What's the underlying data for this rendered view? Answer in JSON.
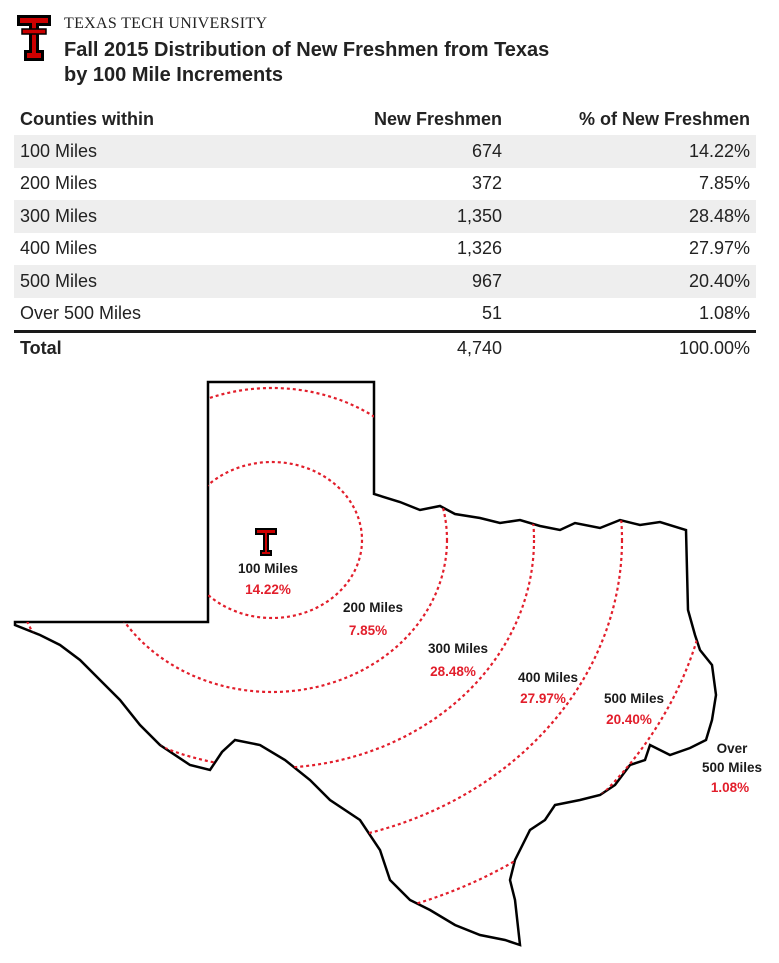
{
  "header": {
    "university": "TEXAS TECH UNIVERSITY",
    "title_line1": "Fall 2015 Distribution of New Freshmen from Texas",
    "title_line2": "by 100 Mile Increments"
  },
  "table": {
    "columns": [
      "Counties within",
      "New Freshmen",
      "% of New Freshmen"
    ],
    "rows": [
      [
        "100 Miles",
        "674",
        "14.22%"
      ],
      [
        "200 Miles",
        "372",
        "7.85%"
      ],
      [
        "300 Miles",
        "1,350",
        "28.48%"
      ],
      [
        "400 Miles",
        "1,326",
        "27.97%"
      ],
      [
        "500 Miles",
        "967",
        "20.40%"
      ],
      [
        "Over 500 Miles",
        "51",
        "1.08%"
      ]
    ],
    "total": [
      "Total",
      "4,740",
      "100.00%"
    ]
  },
  "map": {
    "zones": [
      {
        "name": "100 Miles",
        "pct": "14.22%"
      },
      {
        "name": "200 Miles",
        "pct": "7.85%"
      },
      {
        "name": "300 Miles",
        "pct": "28.48%"
      },
      {
        "name": "400 Miles",
        "pct": "27.97%"
      },
      {
        "name": "500 Miles",
        "pct": "20.40%"
      },
      {
        "name_line1": "Over",
        "name_line2": "500 Miles",
        "pct": "1.08%"
      }
    ],
    "colors": {
      "ring": "#e21e2b",
      "outline": "#000000",
      "label": "#1a1a1a",
      "pct": "#e21e2b"
    }
  },
  "brand": {
    "logo_red": "#cc0000",
    "logo_black": "#000000"
  }
}
